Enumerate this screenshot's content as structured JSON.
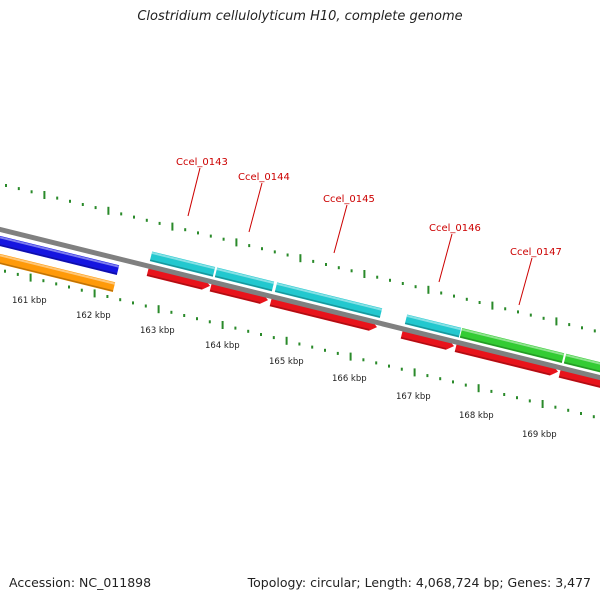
{
  "title": "Clostridium cellulolyticum H10, complete genome",
  "footer": {
    "accession": "Accession: NC_011898",
    "summary": "Topology: circular; Length: 4,068,724 bp; Genes: 3,477"
  },
  "colors": {
    "backbone": "#808080",
    "tick": "#2a8a2a",
    "label": "#cc0000",
    "cds_red": "#e8131b",
    "cyan": "#22c8cf",
    "green": "#33cc33",
    "blue": "#1515e0",
    "orange": "#ff9a0a"
  },
  "genome_map": {
    "ticks": [
      "161 kbp",
      "162 kbp",
      "163 kbp",
      "164 kbp",
      "165 kbp",
      "166 kbp",
      "167 kbp",
      "168 kbp",
      "169 kbp"
    ],
    "gene_labels": [
      "Ccel_0143",
      "Ccel_0144",
      "Ccel_0145",
      "Ccel_0146",
      "Ccel_0147"
    ]
  }
}
